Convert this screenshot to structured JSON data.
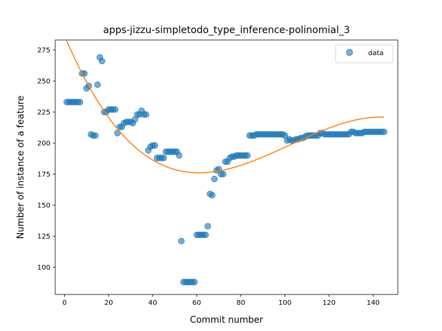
{
  "chart_data": {
    "type": "scatter",
    "title": "apps-jizzu-simpletodo_type_inference-polinomial_3",
    "xlabel": "Commit number",
    "ylabel": "Number of instance of a feature",
    "xlim": [
      -4.2,
      151.2
    ],
    "ylim": [
      78,
      283
    ],
    "xticks": [
      0,
      20,
      40,
      60,
      80,
      100,
      120,
      140
    ],
    "yticks": [
      100,
      125,
      150,
      175,
      200,
      225,
      250,
      275
    ],
    "grid": false,
    "legend": {
      "placement": "top-right",
      "entries": [
        "data"
      ]
    },
    "colors": {
      "data": "#1f77b4",
      "fit": "#ff7f0e"
    },
    "series": [
      {
        "name": "data",
        "kind": "scatter",
        "x": [
          1,
          2,
          3,
          4,
          5,
          6,
          7,
          8,
          9,
          10,
          11,
          12,
          13,
          14,
          15,
          16,
          17,
          18,
          19,
          20,
          21,
          22,
          23,
          24,
          25,
          26,
          27,
          28,
          29,
          30,
          31,
          32,
          33,
          34,
          35,
          36,
          37,
          38,
          39,
          40,
          41,
          42,
          43,
          44,
          45,
          46,
          47,
          48,
          49,
          50,
          51,
          52,
          53,
          54,
          55,
          56,
          57,
          58,
          59,
          60,
          61,
          62,
          63,
          64,
          65,
          66,
          67,
          68,
          69,
          70,
          71,
          72,
          73,
          74,
          75,
          76,
          77,
          78,
          79,
          80,
          81,
          82,
          83,
          84,
          85,
          86,
          87,
          88,
          89,
          90,
          91,
          92,
          93,
          94,
          95,
          96,
          97,
          98,
          99,
          100,
          101,
          102,
          103,
          104,
          105,
          106,
          107,
          108,
          109,
          110,
          111,
          112,
          113,
          114,
          115,
          116,
          117,
          118,
          119,
          120,
          121,
          122,
          123,
          124,
          125,
          126,
          127,
          128,
          129,
          130,
          131,
          132,
          133,
          134,
          135,
          136,
          137,
          138,
          139,
          140,
          141,
          142,
          143,
          144,
          145
        ],
        "y": [
          233,
          233,
          233,
          233,
          233,
          233,
          233,
          256,
          256,
          244,
          246,
          207,
          206,
          206,
          247,
          269,
          266,
          225,
          225,
          227,
          227,
          227,
          227,
          208,
          213,
          213,
          216,
          217,
          217,
          217,
          216,
          219,
          223,
          223,
          226,
          223,
          223,
          194,
          197,
          198,
          198,
          188,
          188,
          188,
          188,
          193,
          193,
          193,
          193,
          193,
          193,
          190,
          121,
          88,
          88,
          88,
          88,
          88,
          88,
          126,
          126,
          126,
          126,
          126,
          133,
          159,
          158,
          171,
          178,
          179,
          175,
          175,
          185,
          185,
          188,
          189,
          189,
          190,
          190,
          190,
          190,
          190,
          190,
          206,
          206,
          206,
          207,
          207,
          207,
          207,
          207,
          207,
          207,
          207,
          207,
          207,
          207,
          207,
          207,
          206,
          202,
          203,
          202,
          202,
          203,
          203,
          204,
          204,
          205,
          206,
          206,
          206,
          206,
          206,
          206,
          208,
          208,
          207,
          207,
          207,
          207,
          207,
          207,
          207,
          207,
          207,
          207,
          207,
          207,
          209,
          209,
          208,
          208,
          208,
          208,
          209,
          209,
          209,
          209,
          209,
          209,
          209,
          209,
          209,
          209
        ]
      },
      {
        "name": "",
        "kind": "line",
        "fit": "polynomial degree 3",
        "coefficients": [
          286.6,
          -4.22,
          0.04925,
          -0.0001605
        ]
      }
    ]
  }
}
